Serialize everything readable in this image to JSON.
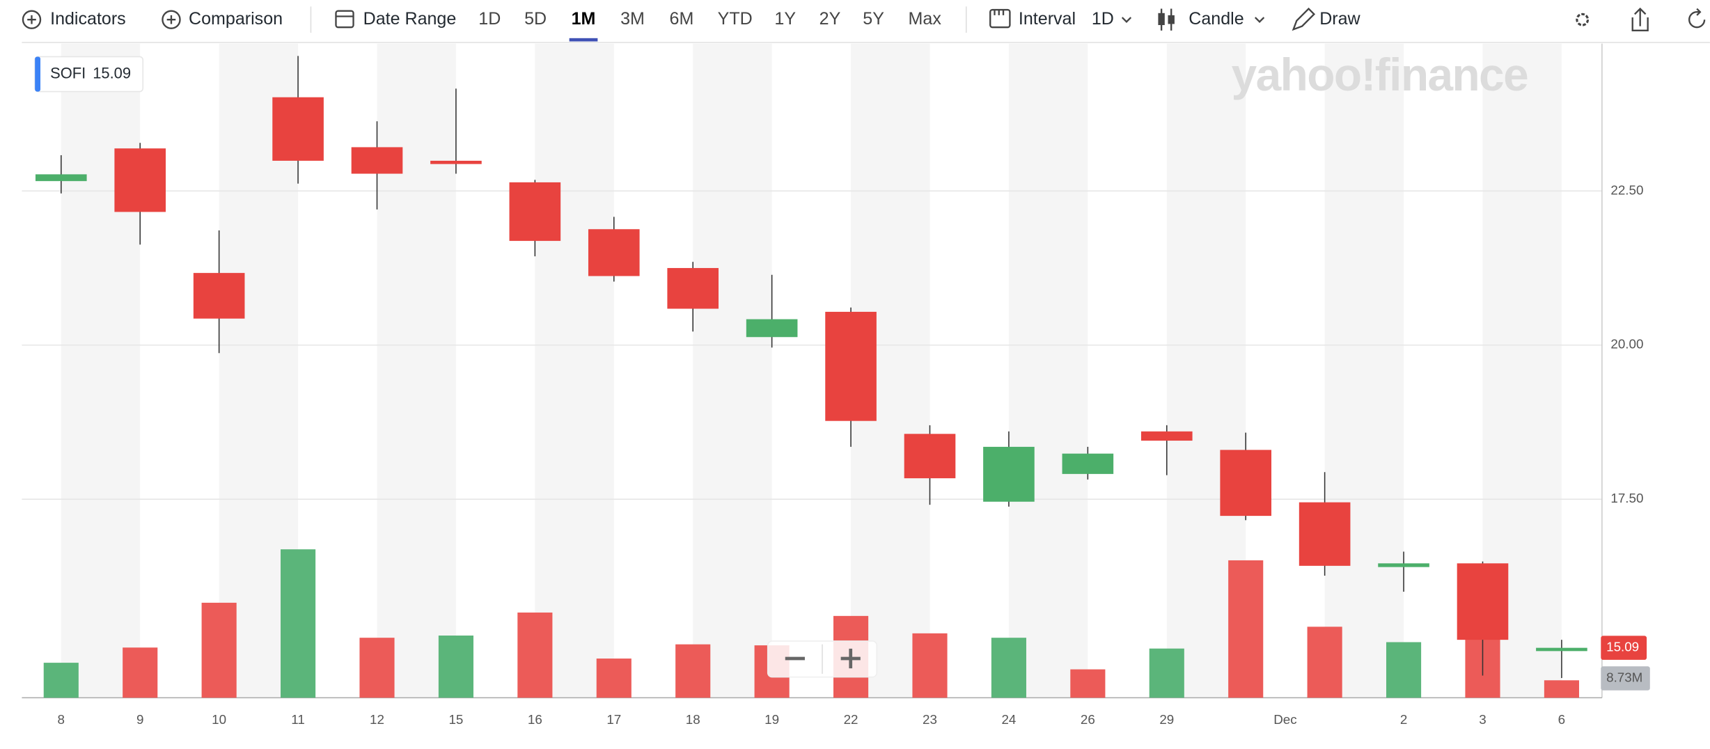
{
  "toolbar": {
    "indicators": "Indicators",
    "comparison": "Comparison",
    "date_range": "Date Range",
    "ranges": [
      "1D",
      "5D",
      "1M",
      "3M",
      "6M",
      "YTD",
      "1Y",
      "2Y",
      "5Y",
      "Max"
    ],
    "interval": "Interval",
    "interval_value": "1D",
    "chart_style": "Candle",
    "draw": "Draw"
  },
  "watermark": "yahoo!finance",
  "chart_data": {
    "type": "candlestick",
    "symbol": "SOFI",
    "categories": [
      "8",
      "9",
      "10",
      "11",
      "12",
      "15",
      "16",
      "17",
      "18",
      "19",
      "22",
      "23",
      "24",
      "26",
      "29",
      null,
      null,
      "2",
      "3",
      "6"
    ],
    "month_label": "Dec",
    "open": [
      22.66,
      23.19,
      21.17,
      24.02,
      23.21,
      22.99,
      22.64,
      21.88,
      21.25,
      20.13,
      20.54,
      18.56,
      17.46,
      17.91,
      18.6,
      18.3,
      17.45,
      16.4,
      16.46,
      15.06
    ],
    "high": [
      23.08,
      23.28,
      21.86,
      24.69,
      23.63,
      24.16,
      22.68,
      22.08,
      21.35,
      21.14,
      20.61,
      18.7,
      18.6,
      18.35,
      18.7,
      18.58,
      17.94,
      16.65,
      16.49,
      15.22
    ],
    "low": [
      22.46,
      21.63,
      19.87,
      22.62,
      22.2,
      22.78,
      21.44,
      21.03,
      20.22,
      19.96,
      18.35,
      17.41,
      17.38,
      17.82,
      17.89,
      17.16,
      16.26,
      16.0,
      14.64,
      14.6
    ],
    "close": [
      22.77,
      22.16,
      20.43,
      22.99,
      22.78,
      22.94,
      21.69,
      21.12,
      20.59,
      20.42,
      18.77,
      17.84,
      18.35,
      18.24,
      18.45,
      17.23,
      16.42,
      16.46,
      15.22,
      15.09
    ],
    "volume": [
      17500000,
      25100000,
      47500000,
      74200000,
      30000000,
      31100000,
      42600000,
      19600000,
      26700000,
      26200000,
      40900000,
      32200000,
      30000000,
      14200000,
      24600000,
      68700000,
      35500000,
      27800000,
      66600000,
      8730000
    ],
    "last_volume_label": "8.73M",
    "ylim": [
      14.28,
      24.89
    ],
    "yticks": [
      {
        "value": 17.5,
        "label": "17.50"
      },
      {
        "value": 20,
        "label": "20.00"
      },
      {
        "value": 22.5,
        "label": "22.50"
      }
    ],
    "volume_ylim": [
      0,
      109000000
    ],
    "up_color": "#4caf6a",
    "down_color": "#e8433f",
    "volume_up_color": "#5bb57a",
    "volume_down_color": "#ec5b58",
    "grid": true
  }
}
